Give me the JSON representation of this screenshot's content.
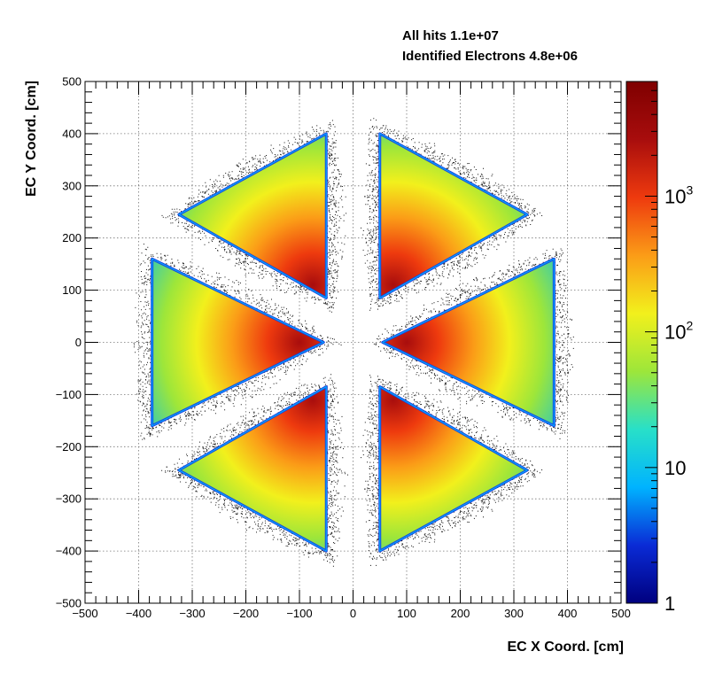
{
  "stats": {
    "all_hits": "All hits 1.1e+07",
    "identified_electrons": "Identified Electrons 4.8e+06"
  },
  "chart_data": {
    "type": "heatmap",
    "title": "",
    "xlabel": "EC X Coord. [cm]",
    "ylabel": "EC Y Coord. [cm]",
    "xlim": [
      -500,
      500
    ],
    "ylim": [
      -500,
      500
    ],
    "x_ticks": [
      -500,
      -400,
      -300,
      -200,
      -100,
      0,
      100,
      200,
      300,
      400,
      500
    ],
    "y_ticks": [
      -500,
      -400,
      -300,
      -200,
      -100,
      0,
      100,
      200,
      300,
      400,
      500
    ],
    "grid": true,
    "z_scale": "log",
    "z_range": [
      1,
      7000
    ],
    "colorbar_labels": [
      {
        "base": "1",
        "exp": "",
        "value": 1
      },
      {
        "base": "10",
        "exp": "",
        "value": 10
      },
      {
        "base": "10",
        "exp": "2",
        "value": 100
      },
      {
        "base": "10",
        "exp": "3",
        "value": 1000
      }
    ],
    "colorbar_colors": [
      "#00007f",
      "#0a2bd6",
      "#00b3ff",
      "#28e0c8",
      "#9de63a",
      "#f2f01c",
      "#fb9c17",
      "#ee3a0e",
      "#a80d0d",
      "#7f0000"
    ],
    "sectors": [
      {
        "name": "sector-right",
        "vertices": [
          [
            375,
            160
          ],
          [
            375,
            -160
          ],
          [
            55,
            0
          ]
        ],
        "peak": [
          100,
          0
        ]
      },
      {
        "name": "sector-upper-right",
        "vertices": [
          [
            50,
            400
          ],
          [
            325,
            245
          ],
          [
            50,
            85
          ]
        ],
        "peak": [
          75,
          110
        ]
      },
      {
        "name": "sector-upper-left",
        "vertices": [
          [
            -50,
            400
          ],
          [
            -325,
            245
          ],
          [
            -50,
            85
          ]
        ],
        "peak": [
          -75,
          110
        ]
      },
      {
        "name": "sector-left",
        "vertices": [
          [
            -375,
            160
          ],
          [
            -375,
            -160
          ],
          [
            -55,
            0
          ]
        ],
        "peak": [
          -100,
          0
        ]
      },
      {
        "name": "sector-lower-left",
        "vertices": [
          [
            -50,
            -400
          ],
          [
            -325,
            -245
          ],
          [
            -50,
            -85
          ]
        ],
        "peak": [
          -75,
          -110
        ]
      },
      {
        "name": "sector-lower-right",
        "vertices": [
          [
            50,
            -400
          ],
          [
            325,
            -245
          ],
          [
            50,
            -85
          ]
        ],
        "peak": [
          75,
          -110
        ]
      }
    ]
  }
}
